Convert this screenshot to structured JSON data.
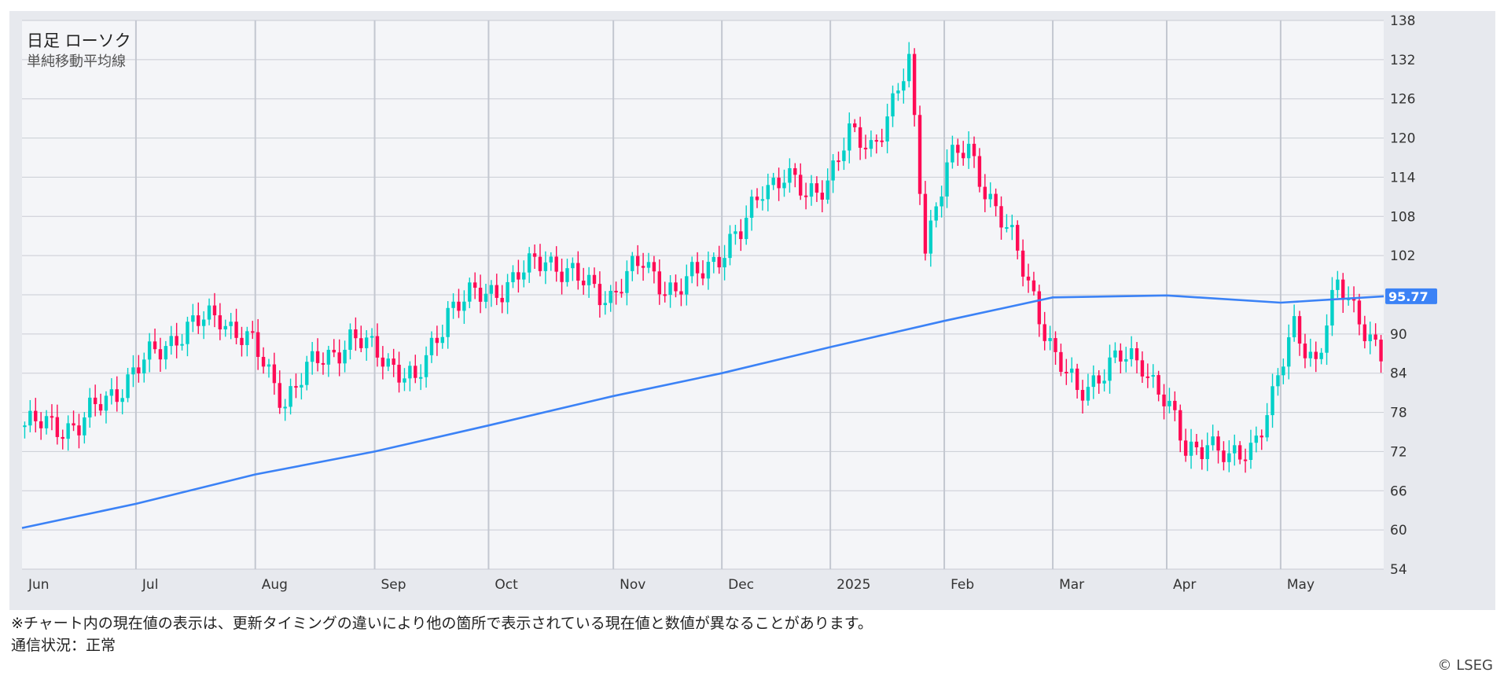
{
  "chart_data": {
    "type": "candlestick",
    "title": "日足 ローソク",
    "subtitle": "単純移動平均線",
    "ylim": [
      54,
      138
    ],
    "y_ticks": [
      54,
      60,
      66,
      72,
      78,
      84,
      90,
      96,
      102,
      108,
      114,
      120,
      126,
      132,
      138
    ],
    "y_tick_labels": [
      "54",
      "60",
      "66",
      "72",
      "78",
      "84",
      "90",
      "",
      "102",
      "108",
      "114",
      "120",
      "126",
      "132",
      "138"
    ],
    "x_months": [
      "Jun",
      "Jul",
      "Aug",
      "Sep",
      "Oct",
      "Nov",
      "Dec",
      "2025",
      "Feb",
      "Mar",
      "Apr",
      "May"
    ],
    "month_start_index": [
      0,
      21,
      43,
      65,
      86,
      109,
      129,
      149,
      170,
      190,
      211,
      232
    ],
    "total_days": 251,
    "moving_average": {
      "name": "単純移動平均線",
      "color": "#3b82f6",
      "points": [
        [
          0,
          60.3
        ],
        [
          21,
          64
        ],
        [
          43,
          68.5
        ],
        [
          65,
          72
        ],
        [
          86,
          76
        ],
        [
          109,
          80.5
        ],
        [
          129,
          84
        ],
        [
          149,
          88
        ],
        [
          170,
          92
        ],
        [
          190,
          95.6
        ],
        [
          211,
          95.9
        ],
        [
          232,
          94.8
        ],
        [
          251,
          95.77
        ]
      ]
    },
    "last_value": "95.77",
    "up_color": "#00d0c8",
    "down_color": "#ff0b55",
    "close_path": [
      [
        0,
        76
      ],
      [
        10,
        76
      ],
      [
        20,
        84
      ],
      [
        28,
        90
      ],
      [
        36,
        93
      ],
      [
        42,
        88
      ],
      [
        48,
        80
      ],
      [
        54,
        86
      ],
      [
        60,
        89
      ],
      [
        66,
        87
      ],
      [
        72,
        82
      ],
      [
        78,
        94
      ],
      [
        84,
        96
      ],
      [
        90,
        98
      ],
      [
        96,
        102
      ],
      [
        102,
        98
      ],
      [
        108,
        96
      ],
      [
        114,
        101
      ],
      [
        120,
        96
      ],
      [
        126,
        101
      ],
      [
        132,
        105
      ],
      [
        136,
        113
      ],
      [
        140,
        114
      ],
      [
        144,
        111
      ],
      [
        148,
        114
      ],
      [
        152,
        120
      ],
      [
        156,
        119
      ],
      [
        160,
        125
      ],
      [
        163,
        131
      ],
      [
        166,
        104
      ],
      [
        170,
        116
      ],
      [
        174,
        118
      ],
      [
        178,
        111
      ],
      [
        182,
        104
      ],
      [
        186,
        96
      ],
      [
        190,
        86
      ],
      [
        194,
        81
      ],
      [
        198,
        84
      ],
      [
        202,
        86
      ],
      [
        206,
        86
      ],
      [
        210,
        80
      ],
      [
        214,
        72
      ],
      [
        218,
        74
      ],
      [
        222,
        70
      ],
      [
        226,
        73
      ],
      [
        230,
        80
      ],
      [
        234,
        91
      ],
      [
        238,
        86
      ],
      [
        242,
        97
      ],
      [
        246,
        93
      ],
      [
        251,
        85
      ]
    ]
  },
  "footer": {
    "note1": "※チャート内の現在値の表示は、更新タイミングの違いにより他の箇所で表示されている現在値と数値が異なることがあります。",
    "note2": "通信状況：正常",
    "copyright": "© LSEG"
  }
}
